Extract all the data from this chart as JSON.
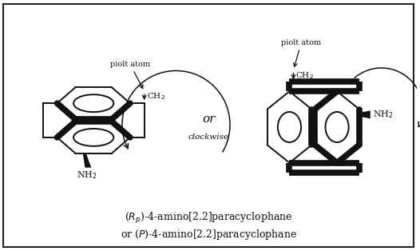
{
  "title_line1": "($R_p$)-4-amino[2.2]paracyclophane",
  "title_line2": "or ($P$)-4-amino[2.2]paracyclophane",
  "or_text": "or",
  "clockwise_text": "clockwise",
  "piolt_atom_text": "piolt atom",
  "ch2_text": "CH$_2$",
  "nh2_text": "NH$_2$",
  "line_color": "#111111",
  "thick_lw": 5.5,
  "thin_lw": 1.4,
  "fig_width": 5.26,
  "fig_height": 3.14
}
